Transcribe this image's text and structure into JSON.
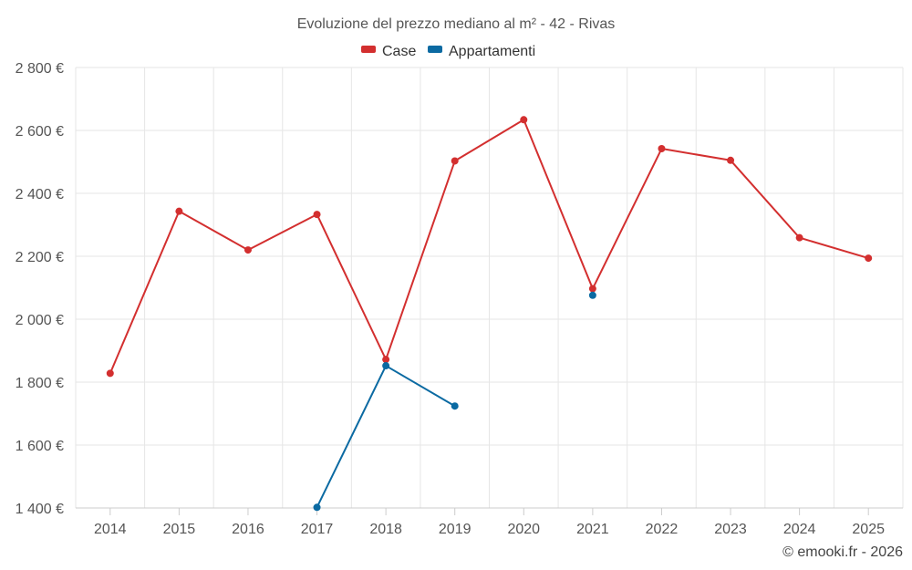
{
  "chart_data": {
    "type": "line",
    "title": "Evoluzione del prezzo mediano al m² - 42 - Rivas",
    "categories": [
      "2014",
      "2015",
      "2016",
      "2017",
      "2018",
      "2019",
      "2020",
      "2021",
      "2022",
      "2023",
      "2024",
      "2025"
    ],
    "ylim": [
      1400,
      2800
    ],
    "yticks": [
      1400,
      1600,
      1800,
      2000,
      2200,
      2400,
      2600,
      2800
    ],
    "ytick_labels": [
      "1 400 €",
      "1 600 €",
      "1 800 €",
      "2 000 €",
      "2 200 €",
      "2 400 €",
      "2 600 €",
      "2 800 €"
    ],
    "grid": true,
    "legend_position": "top-center",
    "series": [
      {
        "name": "Case",
        "color": "#d32f2f",
        "values": [
          1828,
          2343,
          2220,
          2333,
          1872,
          2503,
          2634,
          2097,
          2542,
          2505,
          2259,
          2194
        ]
      },
      {
        "name": "Appartamenti",
        "color": "#0b6aa2",
        "values": [
          null,
          null,
          null,
          1402,
          1852,
          1724,
          null,
          2076,
          null,
          null,
          null,
          null
        ]
      }
    ]
  },
  "credit": "© emooki.fr - 2026"
}
